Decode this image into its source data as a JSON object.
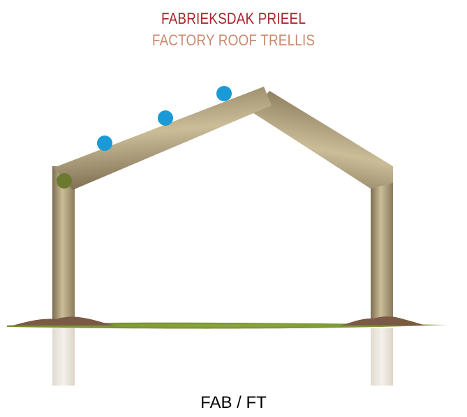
{
  "title_dutch": "FABRIEKSDAK PRIEEL",
  "title_english": "FACTORY ROOF TRELLIS",
  "product_code": "FAB / FT",
  "colors": {
    "title_dutch": "#a8262b",
    "title_english": "#c98a6e",
    "wood_light": "#cbbd98",
    "wood_mid": "#a89a76",
    "wood_dark": "#7d6e52",
    "post_underground": "#e8e3da",
    "grass": "#7f9a36",
    "soil": "#7a5a45",
    "joint_bolt": "#6b7a2e",
    "fixing_dots": "#1a9ad6"
  },
  "icons": [
    "fixing-dot-icon",
    "joint-bolt-icon"
  ]
}
